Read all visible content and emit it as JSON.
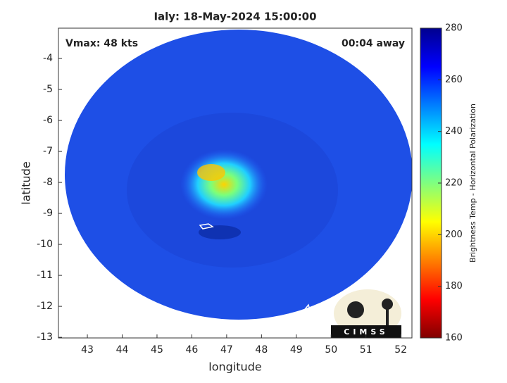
{
  "chart_data": {
    "type": "heatmap",
    "title": "Ialy: 18-May-2024 15:00:00",
    "annotations": [
      "Vmax: 48 kts",
      "00:04 away"
    ],
    "xlabel": "longitude",
    "ylabel": "latitude",
    "xlim": [
      42.17,
      52.32
    ],
    "xticks": [
      43,
      44,
      45,
      46,
      47,
      48,
      49,
      50,
      51,
      52
    ],
    "ylim": [
      -13.02,
      -3.02
    ],
    "yticks": [
      -13,
      -12,
      -11,
      -10,
      -9,
      -8,
      -7,
      -6,
      -5,
      -4
    ],
    "colorbar": {
      "label": "Brightness Temp - Horizontal Polarization",
      "clim": [
        160,
        280
      ],
      "ticks": [
        160,
        180,
        200,
        220,
        240,
        260,
        280
      ],
      "colormap": "jet"
    },
    "logo": "CIMSS"
  }
}
